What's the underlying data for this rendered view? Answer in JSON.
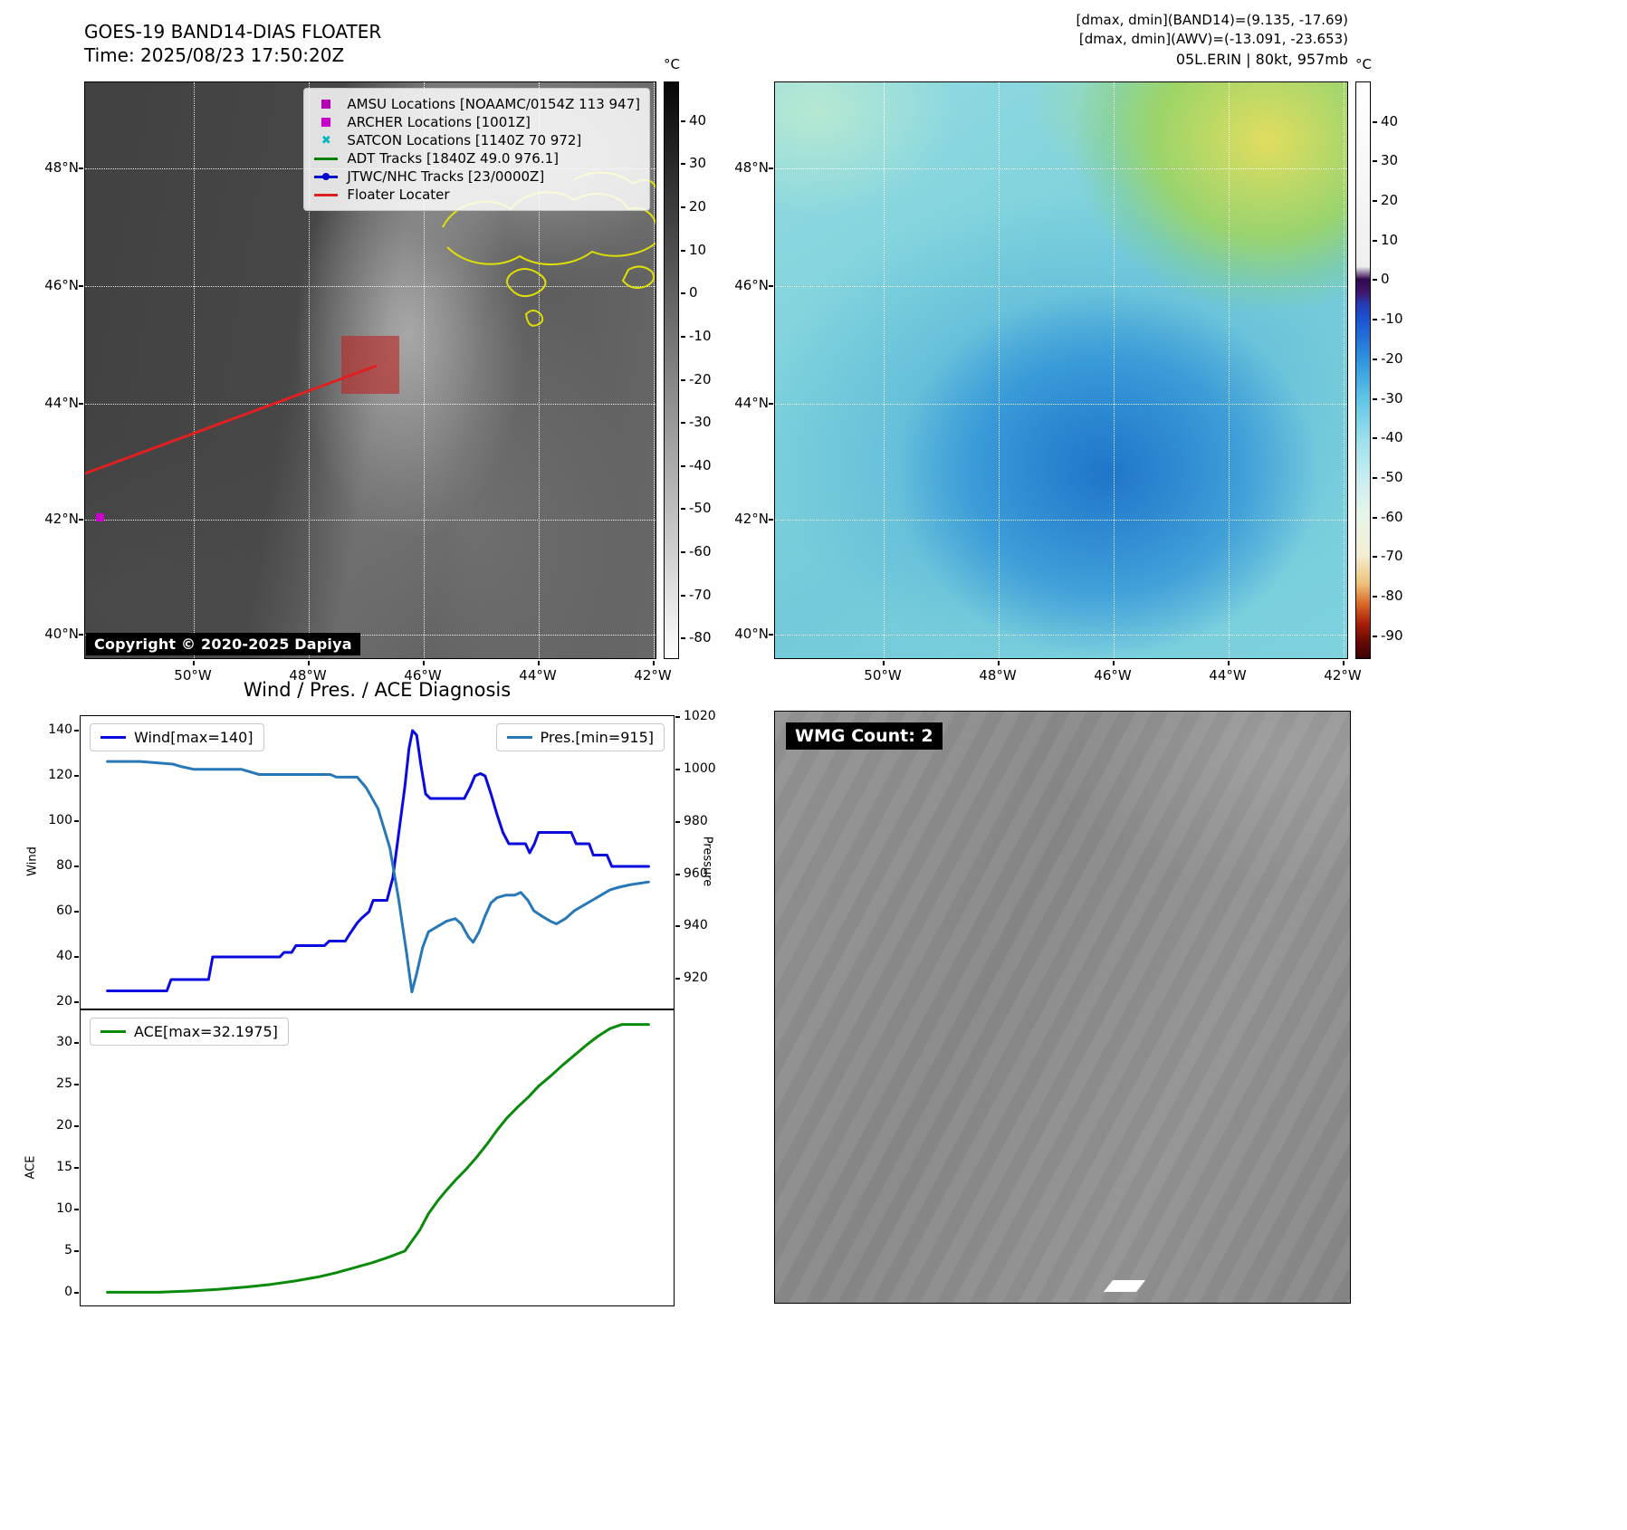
{
  "panel_band14": {
    "title": "GOES-19 BAND14-DIAS FLOATER",
    "time": "Time: 2025/08/23 17:50:20Z",
    "copyright": "Copyright © 2020-2025 Dapiya",
    "legend": [
      {
        "icon": "square",
        "color": "#b400b4",
        "label": "AMSU Locations [NOAAMC/0154Z 113 947]"
      },
      {
        "icon": "square",
        "color": "#cc00cc",
        "label": "ARCHER Locations [1001Z]"
      },
      {
        "icon": "cross",
        "color": "#00b8b8",
        "label": "SATCON Locations [1140Z 70 972]"
      },
      {
        "icon": "line",
        "color": "#008000",
        "label": "ADT Tracks [1840Z 49.0 976.1]"
      },
      {
        "icon": "line-dot",
        "color": "#0000cc",
        "label": "JTWC/NHC Tracks [23/0000Z]"
      },
      {
        "icon": "line",
        "color": "#e02020",
        "label": "Floater Locater"
      }
    ],
    "colorbar": {
      "unit": "°C",
      "ticks": [
        40,
        30,
        20,
        10,
        0,
        -10,
        -20,
        -30,
        -40,
        -50,
        -60,
        -70,
        -80
      ]
    },
    "lat_labels": [
      "48°N",
      "46°N",
      "44°N",
      "42°N",
      "40°N"
    ],
    "lon_labels": [
      "50°W",
      "48°W",
      "46°W",
      "44°W",
      "42°W"
    ]
  },
  "panel_awv": {
    "header_line1": "[dmax, dmin](BAND14)=(9.135, -17.69)",
    "header_line2": "[dmax, dmin](AWV)=(-13.091, -23.653)",
    "header_line3": "05L.ERIN | 80kt, 957mb",
    "colorbar": {
      "unit": "°C",
      "ticks": [
        40,
        30,
        20,
        10,
        0,
        -10,
        -20,
        -30,
        -40,
        -50,
        -60,
        -70,
        -80,
        -90
      ]
    },
    "lat_labels": [
      "48°N",
      "46°N",
      "44°N",
      "42°N",
      "40°N"
    ],
    "lon_labels": [
      "50°W",
      "48°W",
      "46°W",
      "44°W",
      "42°W"
    ]
  },
  "panel_diagnosis": {
    "title": "Wind / Pres. / ACE Diagnosis"
  },
  "panel_wmg": {
    "label": "WMG Count: 2"
  },
  "chart_data": [
    {
      "type": "line",
      "title": "Wind / Pres. / ACE Diagnosis",
      "ylabel": "Wind",
      "y2label": "Pressure",
      "ylim": [
        16.4,
        146.4
      ],
      "y2lim": [
        908,
        1020.3
      ],
      "yticks": [
        20,
        40,
        60,
        80,
        100,
        120,
        140
      ],
      "y2ticks": [
        920,
        940,
        960,
        980,
        1000,
        1020
      ],
      "grid": false,
      "legend": [
        {
          "name": "Wind[max=140]",
          "color": "#0a0adf"
        },
        {
          "name": "Pres.[min=915]",
          "color": "#2878b8"
        }
      ],
      "series": [
        {
          "name": "Wind",
          "axis": "y",
          "color": "#0a0adf",
          "x": [
            0.045,
            0.145,
            0.152,
            0.215,
            0.222,
            0.238,
            0.245,
            0.335,
            0.342,
            0.355,
            0.362,
            0.41,
            0.418,
            0.445,
            0.452,
            0.465,
            0.472,
            0.485,
            0.492,
            0.515,
            0.525,
            0.535,
            0.545,
            0.552,
            0.558,
            0.565,
            0.572,
            0.58,
            0.588,
            0.6,
            0.645,
            0.655,
            0.663,
            0.672,
            0.68,
            0.69,
            0.7,
            0.71,
            0.72,
            0.748,
            0.755,
            0.763,
            0.77,
            0.825,
            0.833,
            0.855,
            0.862,
            0.885,
            0.893,
            0.955
          ],
          "values": [
            25,
            25,
            30,
            30,
            40,
            40,
            40,
            40,
            42,
            42,
            45,
            45,
            47,
            47,
            50,
            55,
            57,
            60,
            65,
            65,
            75,
            95,
            115,
            132,
            140,
            138,
            125,
            112,
            110,
            110,
            110,
            115,
            120,
            121,
            120,
            112,
            103,
            95,
            90,
            90,
            86,
            90,
            95,
            95,
            90,
            90,
            85,
            85,
            80,
            80
          ]
        },
        {
          "name": "Pressure",
          "axis": "y2",
          "color": "#2878b8",
          "x": [
            0.045,
            0.1,
            0.155,
            0.17,
            0.19,
            0.27,
            0.285,
            0.3,
            0.42,
            0.43,
            0.465,
            0.48,
            0.5,
            0.52,
            0.535,
            0.548,
            0.557,
            0.565,
            0.575,
            0.585,
            0.6,
            0.615,
            0.63,
            0.64,
            0.652,
            0.66,
            0.67,
            0.68,
            0.69,
            0.7,
            0.715,
            0.73,
            0.74,
            0.752,
            0.762,
            0.775,
            0.79,
            0.8,
            0.815,
            0.83,
            0.845,
            0.86,
            0.875,
            0.89,
            0.905,
            0.925,
            0.955
          ],
          "values": [
            1003,
            1003,
            1002,
            1001,
            1000,
            1000,
            999,
            998,
            998,
            997,
            997,
            993,
            985,
            970,
            950,
            930,
            915,
            922,
            932,
            938,
            940,
            942,
            943,
            941,
            936,
            934,
            938,
            944,
            949,
            951,
            952,
            952,
            953,
            950,
            946,
            944,
            942,
            941,
            943,
            946,
            948,
            950,
            952,
            954,
            955,
            956,
            957
          ]
        }
      ]
    },
    {
      "type": "line",
      "ylabel": "ACE",
      "ylim": [
        -1.75,
        33.9
      ],
      "yticks": [
        0,
        5,
        10,
        15,
        20,
        25,
        30
      ],
      "grid": false,
      "legend": [
        {
          "name": "ACE[max=32.1975]",
          "color": "#0a8a0a"
        }
      ],
      "series": [
        {
          "name": "ACE",
          "axis": "y",
          "color": "#0a8a0a",
          "x": [
            0.045,
            0.13,
            0.18,
            0.23,
            0.28,
            0.32,
            0.36,
            0.4,
            0.43,
            0.46,
            0.49,
            0.515,
            0.545,
            0.555,
            0.57,
            0.585,
            0.6,
            0.615,
            0.63,
            0.648,
            0.665,
            0.683,
            0.7,
            0.717,
            0.735,
            0.753,
            0.77,
            0.79,
            0.81,
            0.83,
            0.85,
            0.87,
            0.89,
            0.91,
            0.955
          ],
          "values": [
            0.05,
            0.05,
            0.2,
            0.4,
            0.7,
            1.0,
            1.4,
            1.9,
            2.4,
            3.0,
            3.6,
            4.2,
            5.0,
            6.0,
            7.5,
            9.5,
            11.0,
            12.3,
            13.5,
            14.8,
            16.2,
            17.8,
            19.5,
            21.0,
            22.3,
            23.5,
            24.8,
            26.0,
            27.3,
            28.5,
            29.7,
            30.8,
            31.7,
            32.2,
            32.2
          ]
        }
      ]
    }
  ]
}
